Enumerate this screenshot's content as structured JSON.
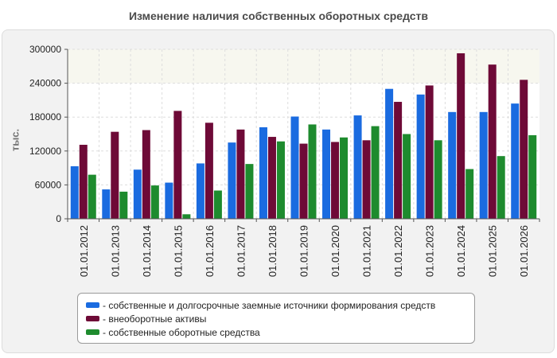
{
  "chart_data": {
    "type": "bar",
    "title": "Изменение наличия собственных оборотных средств",
    "ylabel": "тыс.",
    "xlabel": "",
    "ylim": [
      0,
      300000
    ],
    "yticks": [
      0,
      60000,
      120000,
      180000,
      240000,
      300000
    ],
    "grid": true,
    "legend": "bottom",
    "categories": [
      "01.01.2012",
      "01.01.2013",
      "01.01.2014",
      "01.01.2015",
      "01.01.2016",
      "01.01.2017",
      "01.01.2018",
      "01.01.2019",
      "01.01.2020",
      "01.01.2021",
      "01.01.2022",
      "01.01.2023",
      "01.01.2024",
      "01.01.2025",
      "01.01.2026"
    ],
    "series": [
      {
        "name": "- собственные и долгосрочные заемные источники формирования средств",
        "color": "#1a6be0",
        "values": [
          93000,
          52000,
          87000,
          64000,
          98000,
          135000,
          162000,
          181000,
          158000,
          183000,
          230000,
          220000,
          189000,
          189000,
          204000
        ]
      },
      {
        "name": "- внеоборотные активы",
        "color": "#6e0a37",
        "values": [
          131000,
          154000,
          157000,
          191000,
          170000,
          158000,
          145000,
          133000,
          136000,
          139000,
          207000,
          236000,
          293000,
          273000,
          246000
        ]
      },
      {
        "name": "- собственные оборотные средства",
        "color": "#1e8b2e",
        "values": [
          78000,
          48000,
          59000,
          8000,
          50000,
          97000,
          137000,
          167000,
          144000,
          164000,
          150000,
          139000,
          88000,
          111000,
          148000
        ]
      }
    ]
  }
}
